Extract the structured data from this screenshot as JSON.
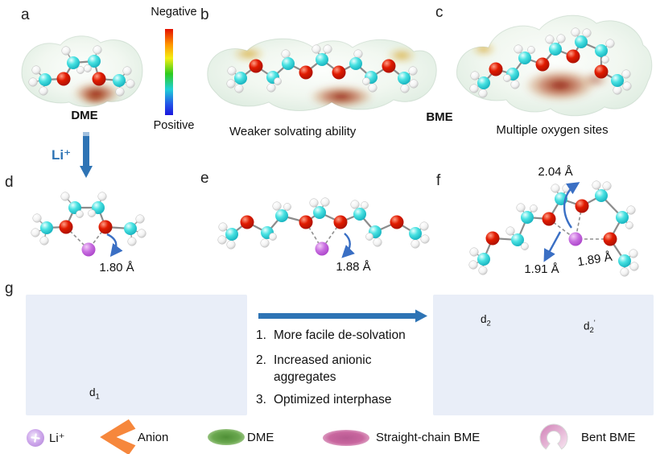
{
  "panel_labels": [
    "a",
    "b",
    "c",
    "d",
    "e",
    "f",
    "g"
  ],
  "colorbar": {
    "top": "Negative",
    "bottom": "Positive"
  },
  "names": {
    "dme": "DME",
    "bme": "BME"
  },
  "captions": {
    "weaker": "Weaker solvating ability",
    "multiple": "Multiple oxygen sites"
  },
  "ion_arrow": {
    "label": "Li⁺"
  },
  "distances": {
    "dme_li": "1.80 Å",
    "straight_li": "1.88 Å",
    "bent_top": "2.04 Å",
    "bent_left": "1.91 Å",
    "bent_right": "1.89 Å"
  },
  "schematic": {
    "d1": {
      "base": "d",
      "sub": "1",
      "prime": ""
    },
    "d2": {
      "base": "d",
      "sub": "2",
      "prime": ""
    },
    "d2prime": {
      "base": "d",
      "sub": "2",
      "prime": "'"
    },
    "steps": [
      {
        "num": "1.",
        "text": "More facile de-solvation"
      },
      {
        "num": "2.",
        "text": "Increased anionic aggregates"
      },
      {
        "num": "3.",
        "text": "Optimized interphase"
      }
    ]
  },
  "legend": {
    "items": [
      {
        "label": "Li⁺"
      },
      {
        "label": "Anion"
      },
      {
        "label": "DME"
      },
      {
        "label": "Straight-chain BME"
      },
      {
        "label": "Bent BME"
      }
    ]
  },
  "colors": {
    "arrow_blue": "#2E74B5",
    "curved_arrow_blue": "#3A6FC4",
    "anion_orange": "#F6873C",
    "dme_green": "#6AA84F",
    "li_ion_purple": "#B88BDC",
    "straight_bme_pink": "#C9679F",
    "bent_bme_pink": "#E3A8CC",
    "oxygen_red": "#E11B00",
    "carbon_cyan": "#49E2E2",
    "hydrogen_white": "#F2F2F2",
    "lithium_violet": "#C86EE0",
    "panel_bg": "#E9EEF8",
    "negative_red": "#E31000",
    "positive_blue": "#1B16DD"
  }
}
